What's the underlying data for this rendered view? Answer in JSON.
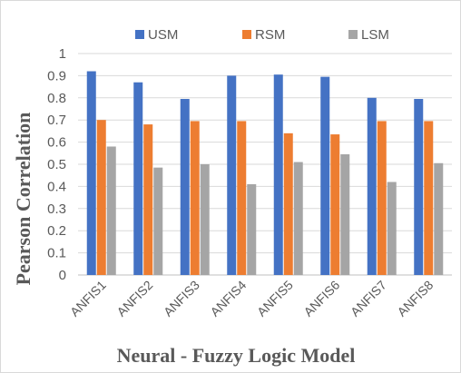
{
  "chart_data": {
    "type": "bar",
    "title": "",
    "xlabel": "Neural - Fuzzy Logic Model",
    "ylabel": "Pearson Correlation",
    "ylim": [
      0,
      1
    ],
    "yticks": [
      "0",
      "0.1",
      "0.2",
      "0.3",
      "0.4",
      "0.5",
      "0.6",
      "0.7",
      "0.8",
      "0.9",
      "1"
    ],
    "grid": true,
    "legend_position": "top",
    "categories": [
      "ANFIS1",
      "ANFIS2",
      "ANFIS3",
      "ANFIS4",
      "ANFIS5",
      "ANFIS6",
      "ANFIS7",
      "ANFIS8"
    ],
    "series": [
      {
        "name": "USM",
        "color": "#4472c4",
        "values": [
          0.92,
          0.87,
          0.795,
          0.9,
          0.905,
          0.895,
          0.8,
          0.795
        ]
      },
      {
        "name": "RSM",
        "color": "#ed7d31",
        "values": [
          0.7,
          0.68,
          0.695,
          0.695,
          0.64,
          0.635,
          0.695,
          0.695
        ]
      },
      {
        "name": "LSM",
        "color": "#a5a5a5",
        "values": [
          0.58,
          0.485,
          0.5,
          0.41,
          0.51,
          0.545,
          0.42,
          0.505
        ]
      }
    ]
  }
}
